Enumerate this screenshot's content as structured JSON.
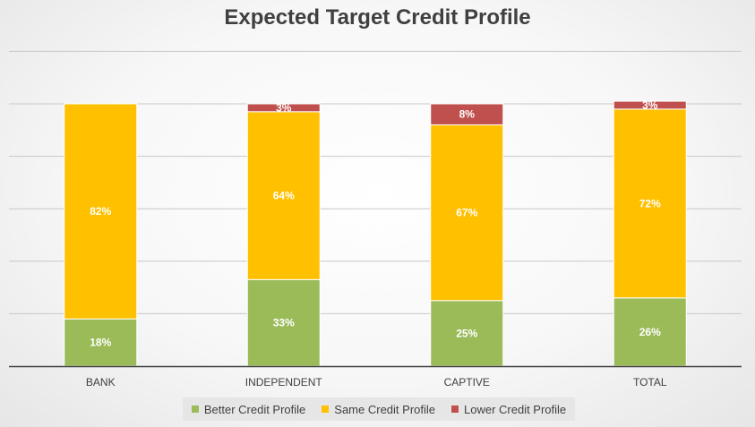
{
  "chart_data": {
    "type": "bar",
    "stacked": true,
    "title": "Expected Target Credit Profile",
    "xlabel": "",
    "ylabel": "",
    "ylim": [
      0,
      1.2
    ],
    "grid": true,
    "legend_position": "bottom",
    "categories": [
      "BANK",
      "INDEPENDENT",
      "CAPTIVE",
      "TOTAL"
    ],
    "series": [
      {
        "name": "Better Credit Profile",
        "color": "#9bbb59",
        "values": [
          0.18,
          0.33,
          0.25,
          0.26
        ],
        "labels": [
          "18%",
          "33%",
          "25%",
          "26%"
        ]
      },
      {
        "name": "Same Credit Profile",
        "color": "#ffc000",
        "values": [
          0.82,
          0.64,
          0.67,
          0.72
        ],
        "labels": [
          "82%",
          "64%",
          "67%",
          "72%"
        ]
      },
      {
        "name": "Lower Credit Profile",
        "color": "#c0504d",
        "values": [
          0,
          0.03,
          0.08,
          0.03
        ],
        "labels": [
          "",
          "3%",
          "8%",
          "3%"
        ]
      }
    ]
  }
}
